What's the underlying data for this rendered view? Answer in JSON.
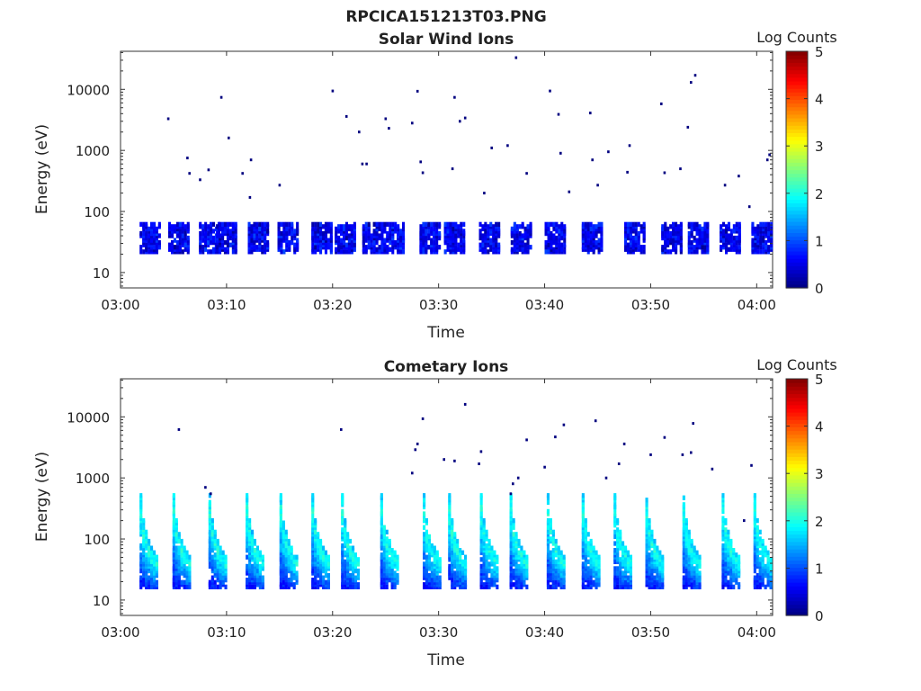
{
  "figure_title": "RPCICA151213T03.PNG",
  "chart_data": [
    {
      "type": "heatmap",
      "title": "Solar Wind Ions",
      "xlabel": "Time",
      "ylabel": "Energy (eV)",
      "x_ticks": [
        "03:00",
        "03:10",
        "03:20",
        "03:30",
        "03:40",
        "03:50",
        "04:00"
      ],
      "xlim_minutes": [
        0,
        61.5
      ],
      "y_scale": "log",
      "y_ticks": [
        10,
        100,
        1000,
        10000
      ],
      "ylim": [
        5.6,
        42000
      ],
      "colorbar": {
        "label": "Log Counts",
        "ticks": [
          0,
          1,
          2,
          3,
          4,
          5
        ],
        "range": [
          0,
          5
        ],
        "colormap": "jet"
      },
      "bursts_minute": [
        1.8,
        4.5,
        7.4,
        9.0,
        12.0,
        14.8,
        18.0,
        20.2,
        22.8,
        24.8,
        28.2,
        30.5,
        33.8,
        36.8,
        40.0,
        43.5,
        47.5,
        51.0,
        53.5,
        56.5,
        59.5
      ],
      "band_energy_ev": [
        20,
        60
      ],
      "peak_log_counts": 0.8,
      "scattered_points": [
        {
          "t": 4.5,
          "e": 3300
        },
        {
          "t": 6.3,
          "e": 750
        },
        {
          "t": 6.5,
          "e": 420
        },
        {
          "t": 7.5,
          "e": 330
        },
        {
          "t": 8.3,
          "e": 480
        },
        {
          "t": 9.5,
          "e": 7400
        },
        {
          "t": 10.2,
          "e": 1600
        },
        {
          "t": 11.5,
          "e": 420
        },
        {
          "t": 12.3,
          "e": 700
        },
        {
          "t": 12.2,
          "e": 170
        },
        {
          "t": 15.0,
          "e": 270
        },
        {
          "t": 20.0,
          "e": 9400
        },
        {
          "t": 21.3,
          "e": 3600
        },
        {
          "t": 22.5,
          "e": 2000
        },
        {
          "t": 22.8,
          "e": 600
        },
        {
          "t": 23.2,
          "e": 600
        },
        {
          "t": 25.0,
          "e": 3300
        },
        {
          "t": 25.3,
          "e": 2300
        },
        {
          "t": 27.5,
          "e": 2800
        },
        {
          "t": 28.0,
          "e": 9300
        },
        {
          "t": 28.3,
          "e": 650
        },
        {
          "t": 28.5,
          "e": 430
        },
        {
          "t": 31.5,
          "e": 7400
        },
        {
          "t": 32.0,
          "e": 3000
        },
        {
          "t": 32.5,
          "e": 3400
        },
        {
          "t": 31.3,
          "e": 500
        },
        {
          "t": 34.3,
          "e": 200
        },
        {
          "t": 35.0,
          "e": 1100
        },
        {
          "t": 36.5,
          "e": 1200
        },
        {
          "t": 37.3,
          "e": 33000
        },
        {
          "t": 38.3,
          "e": 420
        },
        {
          "t": 40.5,
          "e": 9400
        },
        {
          "t": 41.3,
          "e": 3900
        },
        {
          "t": 41.5,
          "e": 900
        },
        {
          "t": 42.3,
          "e": 210
        },
        {
          "t": 44.3,
          "e": 4100
        },
        {
          "t": 44.5,
          "e": 700
        },
        {
          "t": 45.0,
          "e": 270
        },
        {
          "t": 46.0,
          "e": 950
        },
        {
          "t": 48.0,
          "e": 1200
        },
        {
          "t": 47.8,
          "e": 440
        },
        {
          "t": 51.0,
          "e": 5800
        },
        {
          "t": 51.3,
          "e": 430
        },
        {
          "t": 52.8,
          "e": 500
        },
        {
          "t": 53.5,
          "e": 2400
        },
        {
          "t": 53.8,
          "e": 13000
        },
        {
          "t": 54.2,
          "e": 17000
        },
        {
          "t": 57.0,
          "e": 270
        },
        {
          "t": 58.3,
          "e": 380
        },
        {
          "t": 59.3,
          "e": 120
        },
        {
          "t": 61.0,
          "e": 700
        },
        {
          "t": 61.2,
          "e": 850
        }
      ]
    },
    {
      "type": "heatmap",
      "title": "Cometary Ions",
      "xlabel": "Time",
      "ylabel": "Energy (eV)",
      "x_ticks": [
        "03:00",
        "03:10",
        "03:20",
        "03:30",
        "03:40",
        "03:50",
        "04:00"
      ],
      "xlim_minutes": [
        0,
        61.5
      ],
      "y_scale": "log",
      "y_ticks": [
        10,
        100,
        1000,
        10000
      ],
      "ylim": [
        5.6,
        42000
      ],
      "colorbar": {
        "label": "Log Counts",
        "ticks": [
          0,
          1,
          2,
          3,
          4,
          5
        ],
        "range": [
          0,
          5
        ],
        "colormap": "jet"
      },
      "bursts_minute": [
        1.8,
        4.9,
        8.3,
        11.8,
        15.0,
        18.0,
        20.8,
        24.5,
        28.5,
        30.9,
        33.9,
        36.7,
        40.2,
        43.5,
        46.5,
        49.5,
        53.0,
        56.7,
        59.7
      ],
      "band_energy_ev": [
        15,
        50
      ],
      "peak_log_counts": 2.0,
      "scattered_points": [
        {
          "t": 5.5,
          "e": 6200
        },
        {
          "t": 8.0,
          "e": 700
        },
        {
          "t": 8.5,
          "e": 550
        },
        {
          "t": 20.8,
          "e": 6200
        },
        {
          "t": 27.8,
          "e": 2900
        },
        {
          "t": 28.0,
          "e": 3600
        },
        {
          "t": 28.5,
          "e": 9300
        },
        {
          "t": 27.5,
          "e": 1200
        },
        {
          "t": 30.5,
          "e": 2000
        },
        {
          "t": 31.5,
          "e": 1900
        },
        {
          "t": 32.5,
          "e": 16000
        },
        {
          "t": 34.0,
          "e": 2700
        },
        {
          "t": 33.8,
          "e": 1700
        },
        {
          "t": 37.5,
          "e": 1000
        },
        {
          "t": 37.0,
          "e": 800
        },
        {
          "t": 36.8,
          "e": 550
        },
        {
          "t": 38.3,
          "e": 4200
        },
        {
          "t": 40.0,
          "e": 1500
        },
        {
          "t": 41.0,
          "e": 4700
        },
        {
          "t": 41.8,
          "e": 7400
        },
        {
          "t": 44.8,
          "e": 8600
        },
        {
          "t": 45.8,
          "e": 1000
        },
        {
          "t": 47.0,
          "e": 1700
        },
        {
          "t": 47.5,
          "e": 3600
        },
        {
          "t": 50.0,
          "e": 2400
        },
        {
          "t": 51.3,
          "e": 4600
        },
        {
          "t": 53.0,
          "e": 2400
        },
        {
          "t": 53.8,
          "e": 2600
        },
        {
          "t": 54.0,
          "e": 7800
        },
        {
          "t": 55.8,
          "e": 1400
        },
        {
          "t": 58.8,
          "e": 200
        },
        {
          "t": 59.5,
          "e": 1600
        }
      ]
    }
  ]
}
